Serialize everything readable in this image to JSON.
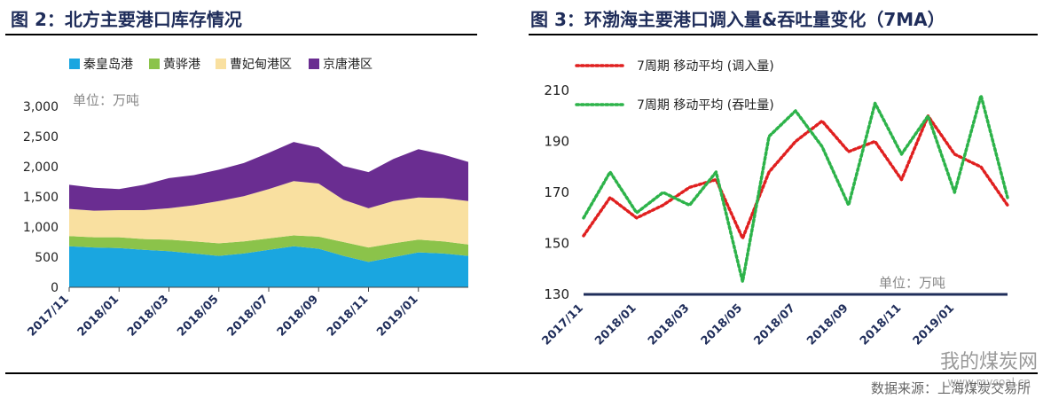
{
  "figures": {
    "left_title": "图 2：北方主要港口库存情况",
    "right_title": "图 3：环渤海主要港口调入量&吞吐量变化（7MA）"
  },
  "watermark": {
    "text": "我的煤炭网",
    "sub": "www.mycoal.cn"
  },
  "source": "数据来源：上海煤炭交易所",
  "colors": {
    "qhd": "#1aa6e0",
    "hh": "#8bc34a",
    "cfd": "#f9e0a0",
    "jt": "#6a2d91",
    "inflow": "#e02020",
    "throughput": "#2db34a",
    "axis": "#1f2d5a"
  },
  "chart_data": [
    {
      "type": "area",
      "title": "图 2：北方主要港口库存情况",
      "unit_note": "单位：万吨",
      "stacked": true,
      "ylim": [
        0,
        3000
      ],
      "y_ticks": [
        "0",
        "500",
        "1,000",
        "1,500",
        "2,000",
        "2,500",
        "3,000"
      ],
      "x_ticks": [
        "2017/11",
        "2018/01",
        "2018/03",
        "2018/05",
        "2018/07",
        "2018/09",
        "2018/11",
        "2019/01"
      ],
      "x_points": [
        "2017/11",
        "2017/12",
        "2018/01",
        "2018/02",
        "2018/03",
        "2018/04",
        "2018/05",
        "2018/06",
        "2018/07",
        "2018/08",
        "2018/09",
        "2018/10",
        "2018/11",
        "2018/12",
        "2019/01",
        "2019/02",
        "2019/03"
      ],
      "legend_position": "top",
      "series": [
        {
          "name": "秦皇岛港",
          "values": [
            680,
            660,
            650,
            620,
            600,
            560,
            520,
            560,
            620,
            680,
            640,
            520,
            420,
            500,
            580,
            560,
            520
          ]
        },
        {
          "name": "黄骅港",
          "values": [
            170,
            170,
            180,
            180,
            190,
            200,
            210,
            200,
            190,
            180,
            200,
            230,
            240,
            230,
            210,
            200,
            190
          ]
        },
        {
          "name": "曹妃甸港区",
          "values": [
            450,
            440,
            450,
            480,
            520,
            600,
            700,
            750,
            820,
            900,
            880,
            700,
            650,
            700,
            700,
            720,
            720
          ]
        },
        {
          "name": "京唐港区",
          "values": [
            400,
            380,
            350,
            420,
            500,
            500,
            520,
            550,
            600,
            650,
            600,
            560,
            600,
            700,
            800,
            720,
            650
          ]
        }
      ]
    },
    {
      "type": "line",
      "title": "图 3：环渤海主要港口调入量&吞吐量变化（7MA）",
      "unit_note": "单位：万吨",
      "ylim": [
        130,
        210
      ],
      "y_ticks": [
        "130",
        "150",
        "170",
        "190",
        "210"
      ],
      "x_ticks": [
        "2017/11",
        "2018/01",
        "2018/03",
        "2018/05",
        "2018/07",
        "2018/09",
        "2018/11",
        "2019/01"
      ],
      "x_points": [
        "2017/11",
        "2017/12",
        "2018/01",
        "2018/02",
        "2018/03",
        "2018/04",
        "2018/05",
        "2018/06",
        "2018/07",
        "2018/08",
        "2018/09",
        "2018/10",
        "2018/11",
        "2018/12",
        "2019/01",
        "2019/02",
        "2019/03"
      ],
      "legend_position": "top-left",
      "series": [
        {
          "name": "7周期 移动平均 (调入量)",
          "values": [
            153,
            168,
            160,
            165,
            172,
            175,
            152,
            178,
            190,
            198,
            186,
            190,
            175,
            200,
            185,
            180,
            165
          ]
        },
        {
          "name": "7周期 移动平均 (吞吐量)",
          "values": [
            160,
            178,
            162,
            170,
            165,
            178,
            135,
            192,
            202,
            188,
            165,
            205,
            185,
            200,
            170,
            208,
            168
          ]
        }
      ]
    }
  ]
}
